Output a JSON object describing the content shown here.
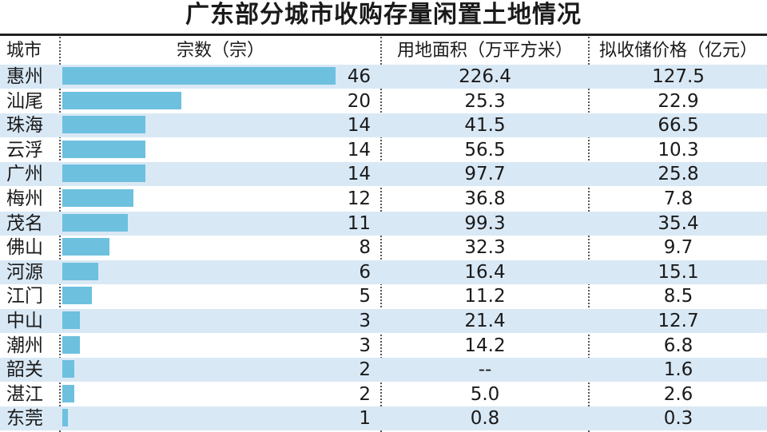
{
  "title": "广东部分城市收购存量闲置土地情况",
  "headers": {
    "city": "城市",
    "count": "宗数（宗）",
    "area": "用地面积（万平方米）",
    "price": "拟收储价格（亿元）"
  },
  "colors": {
    "bar": "#6ec0df",
    "row_shade": "#d9e8f5"
  },
  "chart_data": {
    "type": "bar",
    "orientation": "horizontal",
    "title": "广东部分城市收购存量闲置土地情况",
    "categories": [
      "惠州",
      "汕尾",
      "珠海",
      "云浮",
      "广州",
      "梅州",
      "茂名",
      "佛山",
      "河源",
      "江门",
      "中山",
      "潮州",
      "韶关",
      "湛江",
      "东莞"
    ],
    "series": [
      {
        "name": "宗数（宗）",
        "values": [
          46,
          20,
          14,
          14,
          14,
          12,
          11,
          8,
          6,
          5,
          3,
          3,
          2,
          2,
          1
        ]
      }
    ],
    "xlim": [
      0,
      46
    ]
  },
  "rows": [
    {
      "city": "惠州",
      "count": "46",
      "area": "226.4",
      "price": "127.5"
    },
    {
      "city": "汕尾",
      "count": "20",
      "area": "25.3",
      "price": "22.9"
    },
    {
      "city": "珠海",
      "count": "14",
      "area": "41.5",
      "price": "66.5"
    },
    {
      "city": "云浮",
      "count": "14",
      "area": "56.5",
      "price": "10.3"
    },
    {
      "city": "广州",
      "count": "14",
      "area": "97.7",
      "price": "25.8"
    },
    {
      "city": "梅州",
      "count": "12",
      "area": "36.8",
      "price": "7.8"
    },
    {
      "city": "茂名",
      "count": "11",
      "area": "99.3",
      "price": "35.4"
    },
    {
      "city": "佛山",
      "count": "8",
      "area": "32.3",
      "price": "9.7"
    },
    {
      "city": "河源",
      "count": "6",
      "area": "16.4",
      "price": "15.1"
    },
    {
      "city": "江门",
      "count": "5",
      "area": "11.2",
      "price": "8.5"
    },
    {
      "city": "中山",
      "count": "3",
      "area": "21.4",
      "price": "12.7"
    },
    {
      "city": "潮州",
      "count": "3",
      "area": "14.2",
      "price": "6.8"
    },
    {
      "city": "韶关",
      "count": "2",
      "area": "--",
      "price": "1.6"
    },
    {
      "city": "湛江",
      "count": "2",
      "area": "5.0",
      "price": "2.6"
    },
    {
      "city": "东莞",
      "count": "1",
      "area": "0.8",
      "price": "0.3"
    }
  ]
}
